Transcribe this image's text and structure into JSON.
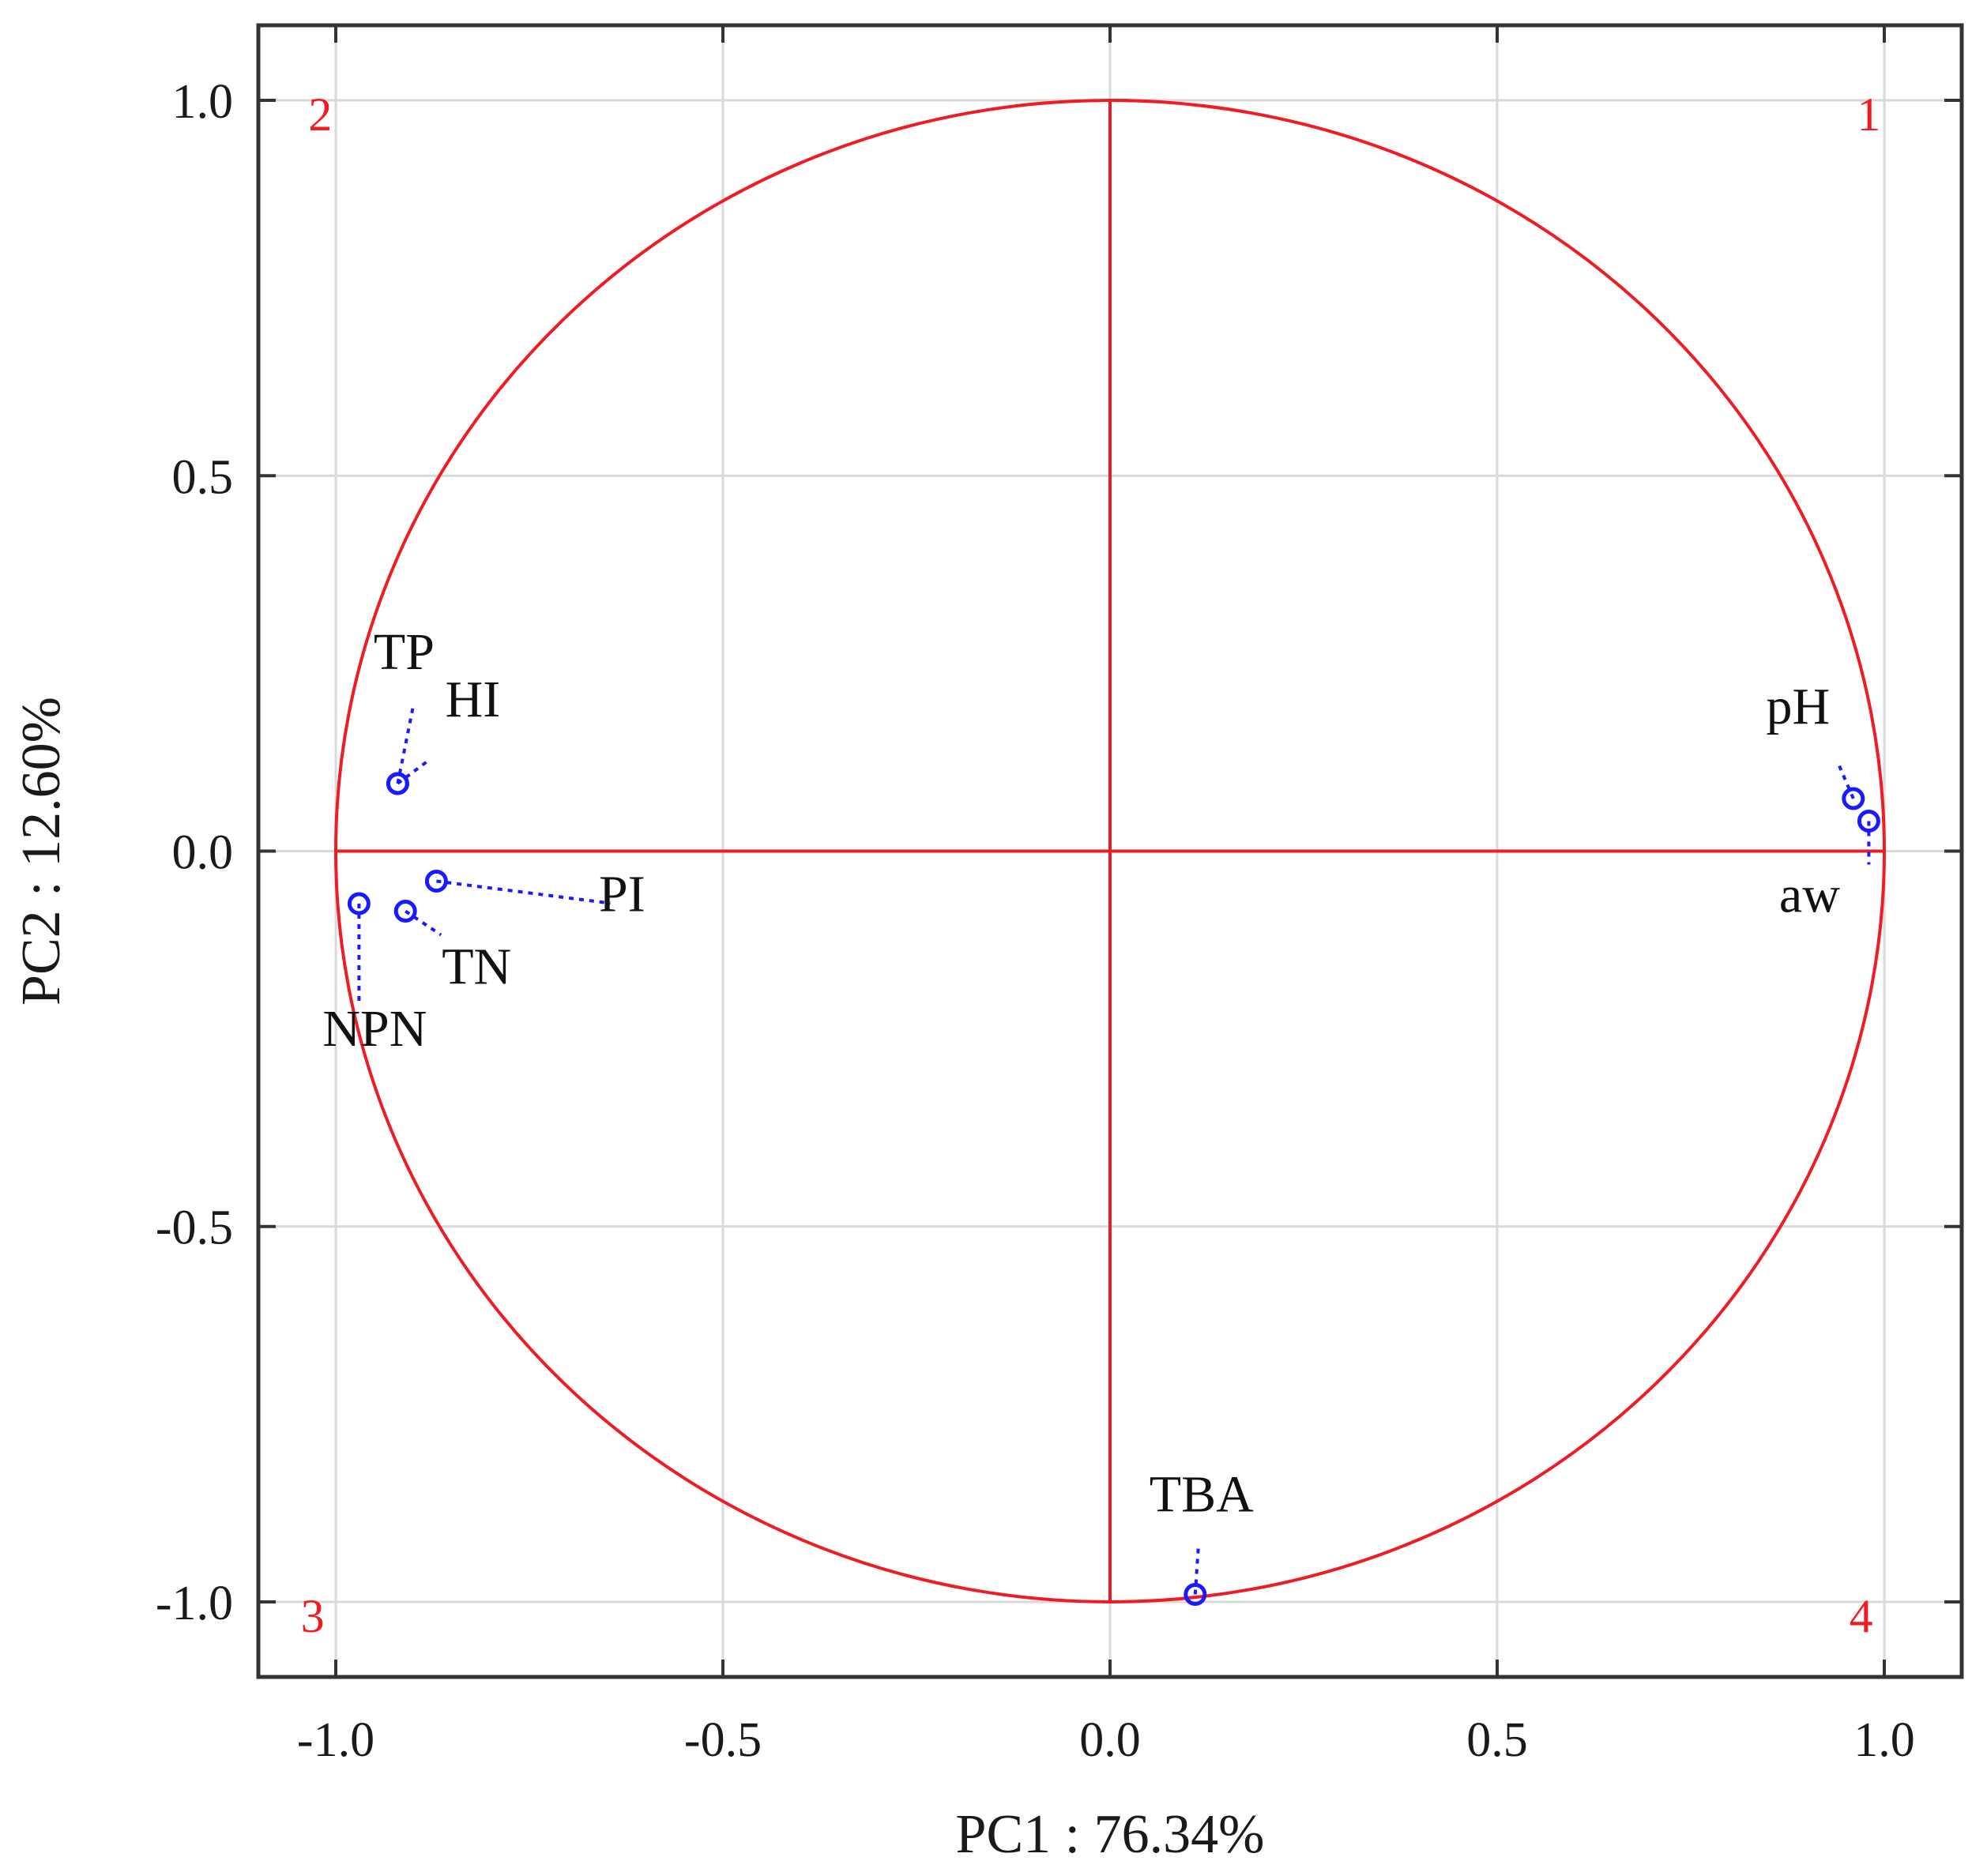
{
  "chart_data": {
    "type": "scatter",
    "xlabel": "PC1 : 76.34%",
    "ylabel": "PC2 : 12.60%",
    "xlim": [
      -1.1,
      1.1
    ],
    "ylim": [
      -1.1,
      1.1
    ],
    "x_ticks": [
      "-1.0",
      "-0.5",
      "0.0",
      "0.5",
      "1.0"
    ],
    "y_ticks": [
      "1.0",
      "0.5",
      "0.0",
      "-0.5",
      "-1.0"
    ],
    "grid": true,
    "unit_circle": true,
    "colors": {
      "circle": "#ee1c24",
      "points": "#1a1aff",
      "grid": "#d9d9d9",
      "frame": "#333333"
    },
    "quadrant_labels": [
      "1",
      "2",
      "3",
      "4"
    ],
    "points": [
      {
        "label": "TP",
        "x": -0.92,
        "y": 0.09
      },
      {
        "label": "HI",
        "x": -0.92,
        "y": 0.09
      },
      {
        "label": "pH",
        "x": 0.96,
        "y": 0.07
      },
      {
        "label": "aw",
        "x": 0.98,
        "y": 0.04
      },
      {
        "label": "PI",
        "x": -0.87,
        "y": -0.04
      },
      {
        "label": "TN",
        "x": -0.91,
        "y": -0.08
      },
      {
        "label": "NPN",
        "x": -0.97,
        "y": -0.07
      },
      {
        "label": "TBA",
        "x": 0.11,
        "y": -0.99
      }
    ]
  }
}
